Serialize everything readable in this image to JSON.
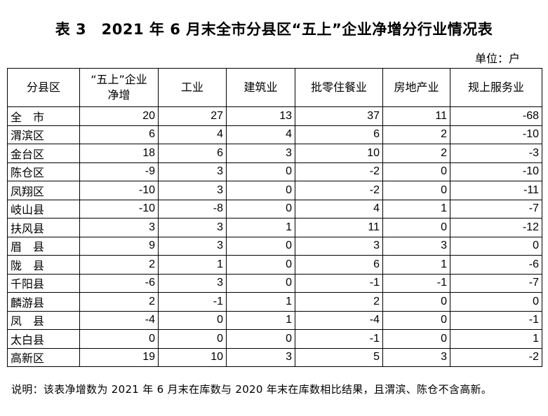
{
  "title": "表 3　2021 年 6 月末全市分县区“五上”企业净增分行业情况表",
  "unit": "单位：户",
  "table": {
    "headers": [
      "分县区",
      "“五上”企业净增",
      "工业",
      "建筑业",
      "批零住餐业",
      "房地产业",
      "规上服务业"
    ],
    "rows": [
      [
        "全　市",
        20,
        27,
        13,
        37,
        11,
        -68
      ],
      [
        "渭滨区",
        6,
        4,
        4,
        6,
        2,
        -10
      ],
      [
        "金台区",
        18,
        6,
        3,
        10,
        2,
        -3
      ],
      [
        "陈仓区",
        -9,
        3,
        0,
        -2,
        0,
        -10
      ],
      [
        "凤翔区",
        -10,
        3,
        0,
        -2,
        0,
        -11
      ],
      [
        "岐山县",
        -10,
        -8,
        0,
        4,
        1,
        -7
      ],
      [
        "扶风县",
        3,
        3,
        1,
        11,
        0,
        -12
      ],
      [
        "眉　县",
        9,
        3,
        0,
        3,
        3,
        0
      ],
      [
        "陇　县",
        2,
        1,
        0,
        6,
        1,
        -6
      ],
      [
        "千阳县",
        -6,
        3,
        0,
        -1,
        -1,
        -7
      ],
      [
        "麟游县",
        2,
        -1,
        1,
        2,
        0,
        0
      ],
      [
        "凤　县",
        -4,
        0,
        1,
        -4,
        0,
        -1
      ],
      [
        "太白县",
        0,
        0,
        0,
        -1,
        0,
        1
      ],
      [
        "高新区",
        19,
        10,
        3,
        5,
        3,
        -2
      ]
    ]
  },
  "note": "说明：该表净增数为 2021 年 6 月末在库数与 2020 年末在库数相比结果，且渭滨、陈仓不含高新。"
}
